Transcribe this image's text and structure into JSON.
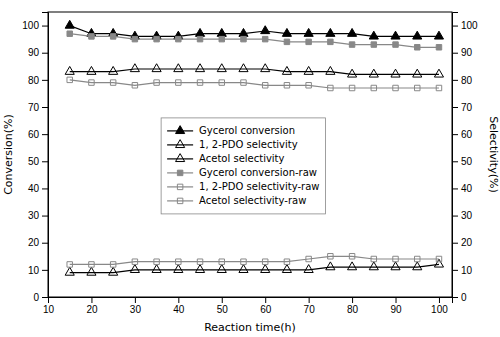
{
  "chart_data": {
    "type": "line",
    "x_label": "Reaction time(h)",
    "y_label": "Conversion(%)",
    "y2_label": "Selectivity(%)",
    "x": [
      15,
      20,
      25,
      30,
      35,
      40,
      45,
      50,
      55,
      60,
      65,
      70,
      75,
      80,
      85,
      90,
      95,
      100
    ],
    "series": [
      {
        "name": "Gycerol conversion",
        "color": "#000000",
        "marker": "triangle",
        "values": [
          100,
          97,
          97,
          96,
          96,
          96,
          97,
          97,
          97,
          98,
          97,
          97,
          97,
          97,
          96,
          96,
          96,
          96
        ]
      },
      {
        "name": "1, 2-PDO selectivity",
        "color": "#000000",
        "marker": "triangle-open",
        "values": [
          83,
          83,
          83,
          84,
          84,
          84,
          84,
          84,
          84,
          84,
          83,
          83,
          83,
          82,
          82,
          82,
          82,
          82
        ]
      },
      {
        "name": "Acetol selectivity",
        "color": "#000000",
        "marker": "triangle-open",
        "values": [
          9,
          9,
          9,
          10,
          10,
          10,
          10,
          10,
          10,
          10,
          10,
          10,
          11,
          11,
          11,
          11,
          11,
          12
        ]
      },
      {
        "name": "Gycerol conversion-raw",
        "color": "#888888",
        "marker": "square",
        "values": [
          97,
          96,
          96,
          95,
          95,
          95,
          95,
          95,
          95,
          95,
          94,
          94,
          94,
          93,
          93,
          93,
          92,
          92
        ]
      },
      {
        "name": "1, 2-PDO selectivity-raw",
        "color": "#888888",
        "marker": "square-open",
        "values": [
          80,
          79,
          79,
          78,
          79,
          79,
          79,
          79,
          79,
          78,
          78,
          78,
          77,
          77,
          77,
          77,
          77,
          77
        ]
      },
      {
        "name": "Acetol selectivity-raw",
        "color": "#888888",
        "marker": "square-open",
        "values": [
          12,
          12,
          12,
          13,
          13,
          13,
          13,
          13,
          13,
          13,
          13,
          14,
          15,
          15,
          14,
          14,
          14,
          14
        ]
      }
    ],
    "xlim": [
      10,
      103
    ],
    "xticks": [
      10,
      20,
      30,
      40,
      50,
      60,
      70,
      80,
      90,
      100
    ],
    "ylim": [
      0,
      105
    ],
    "yticks": [
      0,
      10,
      20,
      30,
      40,
      50,
      60,
      70,
      80,
      90,
      100
    ],
    "y2lim": [
      0,
      105
    ],
    "y2ticks": [
      0,
      10,
      20,
      30,
      40,
      50,
      60,
      70,
      80,
      90,
      100
    ],
    "grid": false,
    "legend": "center"
  }
}
